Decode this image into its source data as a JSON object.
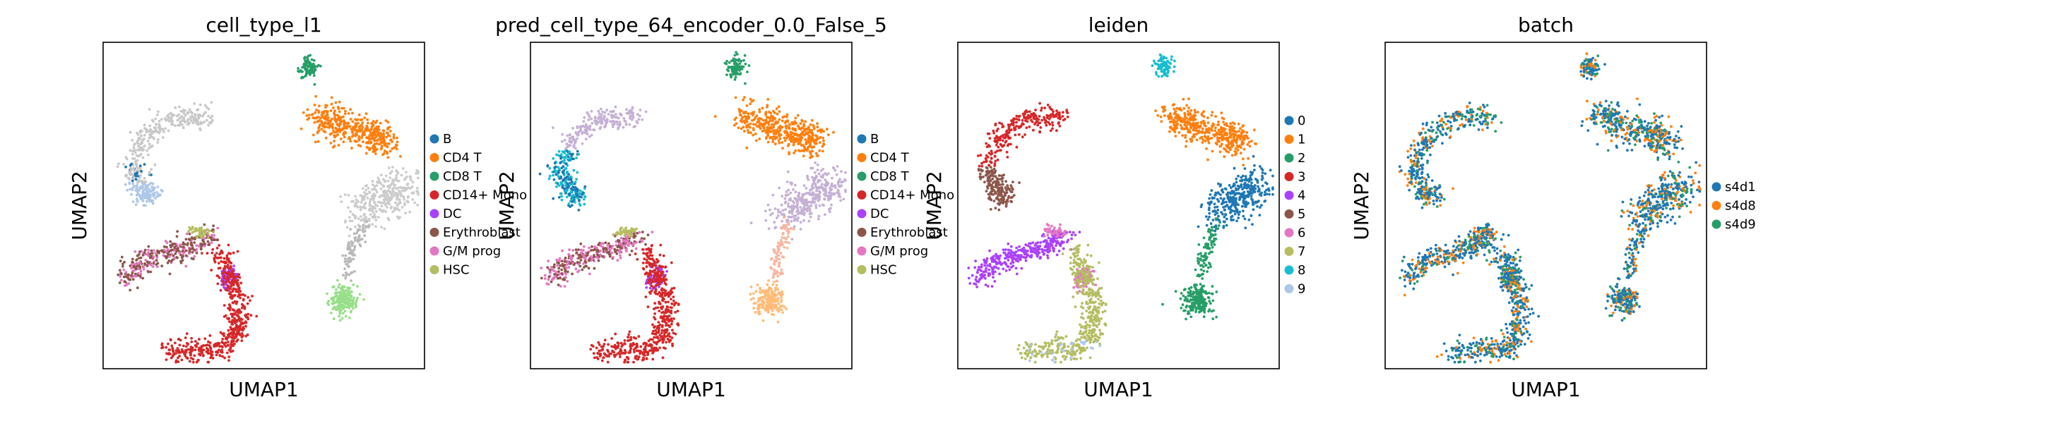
{
  "chart_data": [
    {
      "type": "scatter",
      "title": "cell_type_l1",
      "xlabel": "UMAP1",
      "ylabel": "UMAP2",
      "grid": false,
      "ticks": false,
      "legend_position": "right",
      "legend": [
        {
          "label": "B",
          "color": "#1f77b4"
        },
        {
          "label": "CD4 T",
          "color": "#ff7f0e"
        },
        {
          "label": "CD8 T",
          "color": "#279e68"
        },
        {
          "label": "CD14+ Mono",
          "color": "#d62728"
        },
        {
          "label": "DC",
          "color": "#aa40fc"
        },
        {
          "label": "Erythroblast",
          "color": "#8c564b"
        },
        {
          "label": "G/M prog",
          "color": "#e377c2"
        },
        {
          "label": "HSC",
          "color": "#b5bd61"
        }
      ]
    },
    {
      "type": "scatter",
      "title": "pred_cell_type_64_encoder_0.0_False_5",
      "xlabel": "UMAP1",
      "ylabel": "UMAP2",
      "grid": false,
      "ticks": false,
      "legend_position": "right",
      "legend": [
        {
          "label": "B",
          "color": "#1f77b4"
        },
        {
          "label": "CD4 T",
          "color": "#ff7f0e"
        },
        {
          "label": "CD8 T",
          "color": "#279e68"
        },
        {
          "label": "CD14+ Mono",
          "color": "#d62728"
        },
        {
          "label": "DC",
          "color": "#aa40fc"
        },
        {
          "label": "Erythroblast",
          "color": "#8c564b"
        },
        {
          "label": "G/M prog",
          "color": "#e377c2"
        },
        {
          "label": "HSC",
          "color": "#b5bd61"
        }
      ]
    },
    {
      "type": "scatter",
      "title": "leiden",
      "xlabel": "UMAP1",
      "ylabel": "UMAP2",
      "grid": false,
      "ticks": false,
      "legend_position": "right",
      "legend": [
        {
          "label": "0",
          "color": "#1f77b4"
        },
        {
          "label": "1",
          "color": "#ff7f0e"
        },
        {
          "label": "2",
          "color": "#279e68"
        },
        {
          "label": "3",
          "color": "#d62728"
        },
        {
          "label": "4",
          "color": "#aa40fc"
        },
        {
          "label": "5",
          "color": "#8c564b"
        },
        {
          "label": "6",
          "color": "#e377c2"
        },
        {
          "label": "7",
          "color": "#b5bd61"
        },
        {
          "label": "8",
          "color": "#17becf"
        },
        {
          "label": "9",
          "color": "#aec7e8"
        }
      ]
    },
    {
      "type": "scatter",
      "title": "batch",
      "xlabel": "UMAP1",
      "ylabel": "UMAP2",
      "grid": false,
      "ticks": false,
      "legend_position": "right",
      "legend": [
        {
          "label": "s4d1",
          "color": "#1f77b4"
        },
        {
          "label": "s4d8",
          "color": "#ff7f0e"
        },
        {
          "label": "s4d9",
          "color": "#279e68"
        }
      ]
    }
  ]
}
